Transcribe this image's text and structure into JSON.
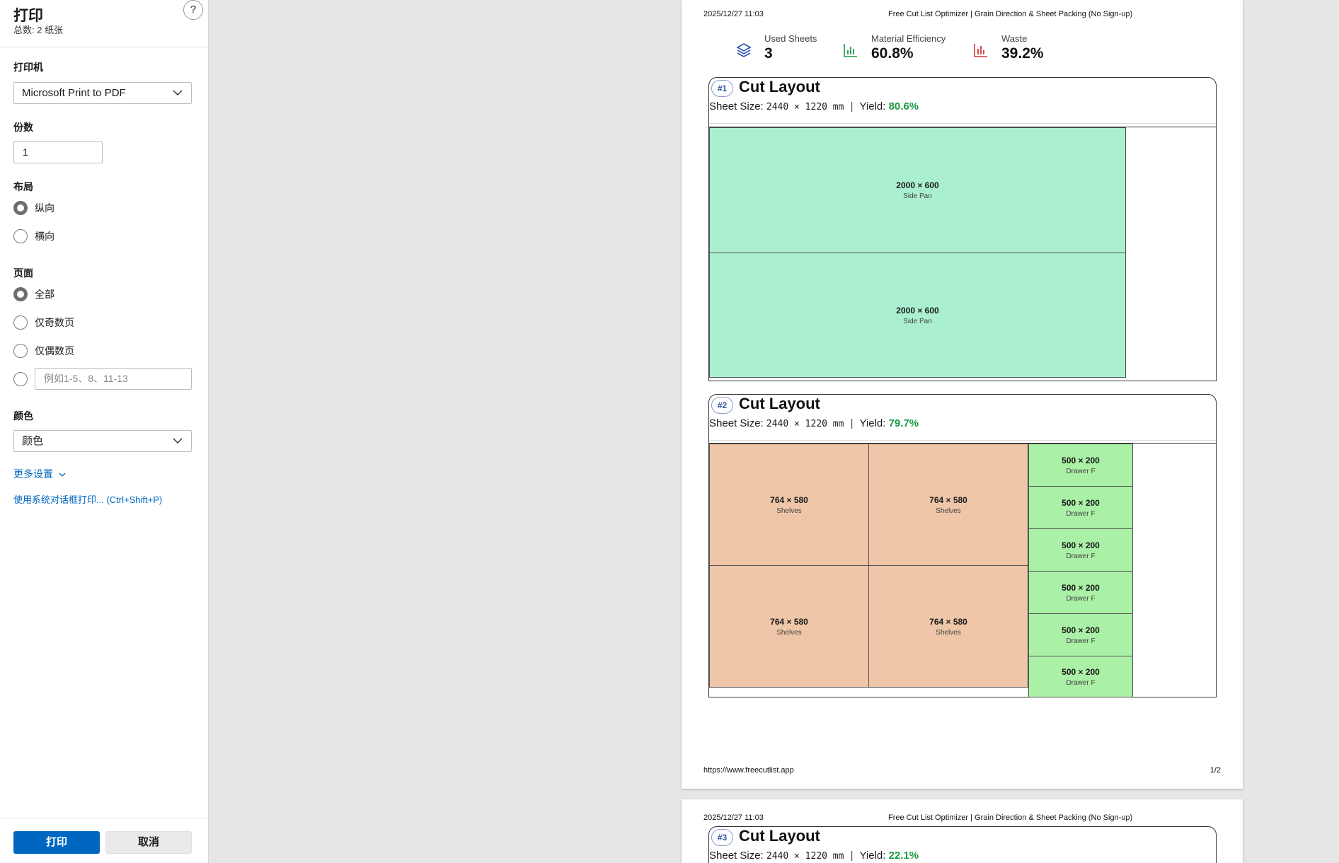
{
  "panel": {
    "title": "打印",
    "total": "总数: 2 纸张",
    "help": "?",
    "printer_label": "打印机",
    "printer_value": "Microsoft Print to PDF",
    "copies_label": "份数",
    "copies_value": "1",
    "layout_label": "布局",
    "layout_options": [
      "纵向",
      "横向"
    ],
    "pages_label": "页面",
    "pages_options": [
      "全部",
      "仅奇数页",
      "仅偶数页"
    ],
    "pages_custom_placeholder": "例如1-5、8、11-13",
    "color_label": "颜色",
    "color_value": "颜色",
    "more_settings": "更多设置",
    "system_dialog": "使用系统对话框打印... (Ctrl+Shift+P)",
    "print_button": "打印",
    "cancel_button": "取消"
  },
  "preview": {
    "header_date": "2025/12/27 11:03",
    "header_title": "Free Cut List Optimizer | Grain Direction & Sheet Packing (No Sign-up)",
    "footer_url": "https://www.freecutlist.app",
    "footer_page": "1/2",
    "stats": [
      {
        "label": "Used Sheets",
        "value": "3",
        "icon": "layers-icon",
        "color": "#2c54a8"
      },
      {
        "label": "Material Efficiency",
        "value": "60.8%",
        "icon": "bar-chart-icon",
        "color": "#1e9a47"
      },
      {
        "label": "Waste",
        "value": "39.2%",
        "icon": "bar-chart-icon",
        "color": "#d03a3a"
      }
    ],
    "cards": [
      {
        "badge": "#1",
        "title": "Cut Layout",
        "sheet_size_label": "Sheet Size:",
        "sheet_size": "2440 × 1220 mm",
        "sep": "|",
        "yield_label": "Yield:",
        "yield": "80.6%",
        "parts": [
          {
            "dim": "2000 × 600",
            "name": "Side Pan",
            "kind": "side"
          },
          {
            "dim": "2000 × 600",
            "name": "Side Pan",
            "kind": "side"
          }
        ]
      },
      {
        "badge": "#2",
        "title": "Cut Layout",
        "sheet_size_label": "Sheet Size:",
        "sheet_size": "2440 × 1220 mm",
        "sep": "|",
        "yield_label": "Yield:",
        "yield": "79.7%",
        "parts": [
          {
            "dim": "764 × 580",
            "name": "Shelves",
            "kind": "shelf"
          },
          {
            "dim": "764 × 580",
            "name": "Shelves",
            "kind": "shelf"
          },
          {
            "dim": "764 × 580",
            "name": "Shelves",
            "kind": "shelf"
          },
          {
            "dim": "764 × 580",
            "name": "Shelves",
            "kind": "shelf"
          },
          {
            "dim": "500 × 200",
            "name": "Drawer F",
            "kind": "drawer"
          },
          {
            "dim": "500 × 200",
            "name": "Drawer F",
            "kind": "drawer"
          },
          {
            "dim": "500 × 200",
            "name": "Drawer F",
            "kind": "drawer"
          },
          {
            "dim": "500 × 200",
            "name": "Drawer F",
            "kind": "drawer"
          },
          {
            "dim": "500 × 200",
            "name": "Drawer F",
            "kind": "drawer"
          },
          {
            "dim": "500 × 200",
            "name": "Drawer F",
            "kind": "drawer"
          }
        ]
      },
      {
        "badge": "#3",
        "title": "Cut Layout",
        "sheet_size_label": "Sheet Size:",
        "sheet_size": "2440 × 1220 mm",
        "sep": "|",
        "yield_label": "Yield:",
        "yield": "22.1%"
      }
    ],
    "colors": {
      "side": "#aaefcf",
      "shelf": "#efc6a8",
      "drawer": "#aaf0a6",
      "yield": "#1e9a47",
      "link": "#0067c0"
    }
  }
}
